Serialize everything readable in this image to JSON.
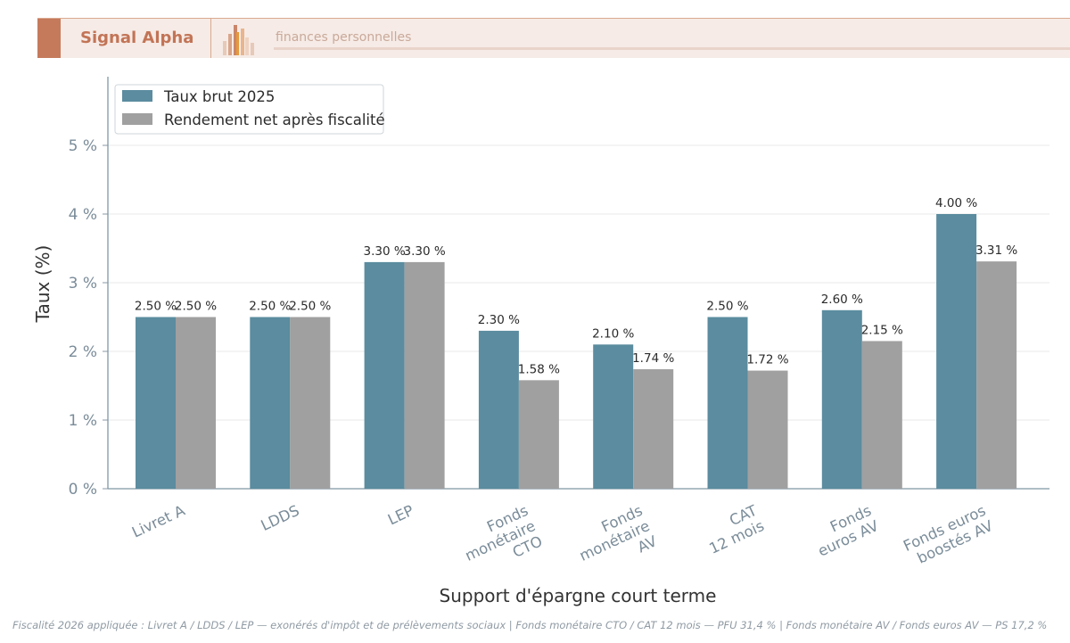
{
  "banner": {
    "brand": "Signal Alpha",
    "tagline": "finances personnelles",
    "icon": "bar-chart-logo-icon",
    "accent_color": "#c57a5b"
  },
  "chart_data": {
    "type": "bar",
    "categories": [
      [
        "Livret A"
      ],
      [
        "LDDS"
      ],
      [
        "LEP"
      ],
      [
        "Fonds",
        "monétaire",
        "CTO"
      ],
      [
        "Fonds",
        "monétaire",
        "AV"
      ],
      [
        "CAT",
        "12 mois"
      ],
      [
        "Fonds",
        "euros AV"
      ],
      [
        "Fonds euros",
        "boostés AV"
      ]
    ],
    "series": [
      {
        "name": "Taux brut 2025",
        "color": "#5b8c9f",
        "values": [
          2.5,
          2.5,
          3.3,
          2.3,
          2.1,
          2.5,
          2.6,
          4.0
        ]
      },
      {
        "name": "Rendement net après fiscalité",
        "color": "#a0a0a0",
        "values": [
          2.5,
          2.5,
          3.3,
          1.58,
          1.74,
          1.72,
          2.15,
          3.31
        ]
      }
    ],
    "value_labels": [
      [
        "2.50 %",
        "2.50 %",
        "3.30 %",
        "2.30 %",
        "2.10 %",
        "2.50 %",
        "2.60 %",
        "4.00 %"
      ],
      [
        "2.50 %",
        "2.50 %",
        "3.30 %",
        "1.58 %",
        "1.74 %",
        "1.72 %",
        "2.15 %",
        "3.31 %"
      ]
    ],
    "xlabel": "Support d'épargne court terme",
    "ylabel": "Taux (%)",
    "ylim": [
      0,
      6
    ],
    "yticks": [
      0,
      1,
      2,
      3,
      4,
      5
    ],
    "ytick_labels": [
      "0 %",
      "1 %",
      "2 %",
      "3 %",
      "4 %",
      "5 %"
    ],
    "grid": "horizontal",
    "legend_position": "top-left"
  },
  "footnote": "Fiscalité 2026 appliquée : Livret A / LDDS / LEP — exonérés d'impôt et de prélèvements sociaux  |  Fonds monétaire CTO / CAT 12 mois — PFU 31,4 %  |  Fonds monétaire AV / Fonds euros AV — PS 17,2 %"
}
